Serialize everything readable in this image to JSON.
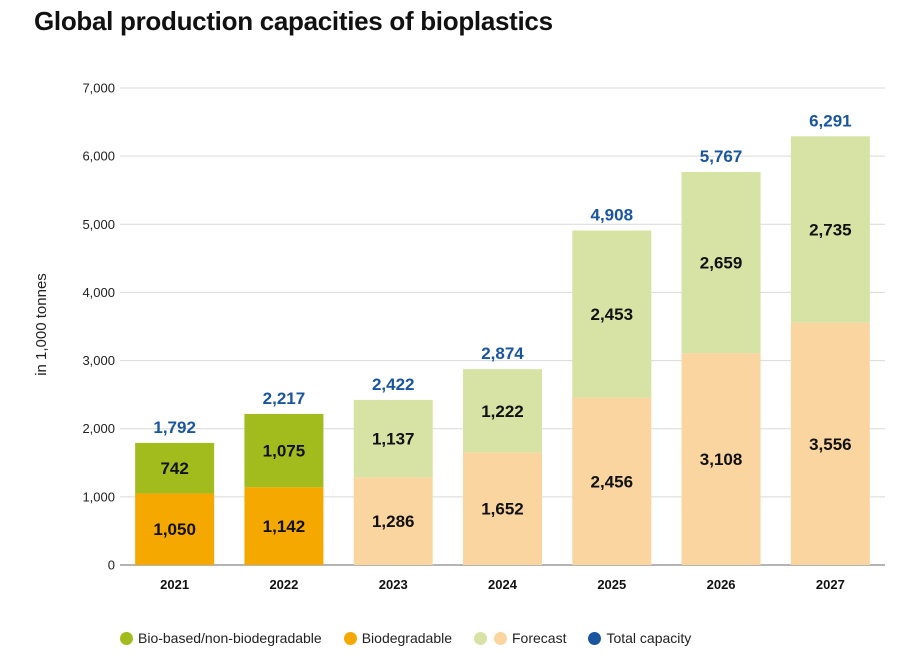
{
  "chart_data": {
    "type": "bar",
    "stacked": true,
    "title": "Global production capacities of bioplastics",
    "ylabel": "in 1,000 tonnes",
    "xlabel": "",
    "ylim": [
      0,
      7000
    ],
    "yticks": [
      0,
      1000,
      2000,
      3000,
      4000,
      5000,
      6000,
      7000
    ],
    "ytick_labels": [
      "0",
      "1,000",
      "2,000",
      "3,000",
      "4,000",
      "5,000",
      "6,000",
      "7,000"
    ],
    "grid": true,
    "categories": [
      "2021",
      "2022",
      "2023",
      "2024",
      "2025",
      "2026",
      "2027"
    ],
    "forecast_flags": [
      false,
      false,
      true,
      true,
      true,
      true,
      true
    ],
    "series": [
      {
        "name": "Biodegradable",
        "values": [
          1050,
          1142,
          1286,
          1652,
          2456,
          3108,
          3556
        ],
        "labels": [
          "1,050",
          "1,142",
          "1,286",
          "1,652",
          "2,456",
          "3,108",
          "3,556"
        ],
        "color": "#f5a800",
        "forecast_color": "#fbd59f"
      },
      {
        "name": "Bio-based/non-biodegradable",
        "values": [
          742,
          1075,
          1137,
          1222,
          2453,
          2659,
          2735
        ],
        "labels": [
          "742",
          "1,075",
          "1,137",
          "1,222",
          "2,453",
          "2,659",
          "2,735"
        ],
        "color": "#a3bc1d",
        "forecast_color": "#d6e3a4"
      }
    ],
    "totals": [
      1792,
      2217,
      2422,
      2874,
      4908,
      5767,
      6291
    ],
    "total_labels": [
      "1,792",
      "2,217",
      "2,422",
      "2,874",
      "4,908",
      "5,767",
      "6,291"
    ],
    "total_color": "#1a56a0",
    "legend": [
      {
        "label": "Bio-based/non-biodegradable",
        "colors": [
          "#a3bc1d"
        ]
      },
      {
        "label": "Biodegradable",
        "colors": [
          "#f5a800"
        ]
      },
      {
        "label": "Forecast",
        "colors": [
          "#d6e3a4",
          "#fbd59f"
        ]
      },
      {
        "label": "Total capacity",
        "colors": [
          "#1a56a0"
        ]
      }
    ],
    "legend_position": "bottom"
  }
}
